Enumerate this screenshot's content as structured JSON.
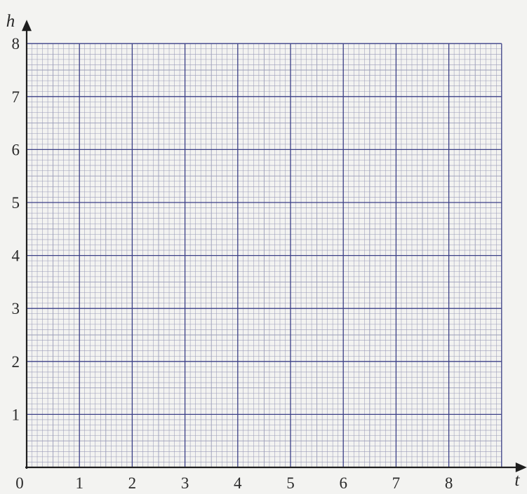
{
  "chart_data": {
    "type": "scatter",
    "title": "",
    "xlabel": "t",
    "ylabel": "h",
    "origin_label": "0",
    "xlim": [
      0,
      9
    ],
    "ylim": [
      0,
      8
    ],
    "x_ticks": [
      1,
      2,
      3,
      4,
      5,
      6,
      7,
      8
    ],
    "y_ticks": [
      1,
      2,
      3,
      4,
      5,
      6,
      7,
      8
    ],
    "grid": true,
    "minor_grid_divisions": 10,
    "series": []
  },
  "colors": {
    "major_grid": "#3b3f86",
    "minor_grid": "#9a9cb8",
    "axis": "#1e1e1e",
    "label": "#2a2a2a"
  }
}
